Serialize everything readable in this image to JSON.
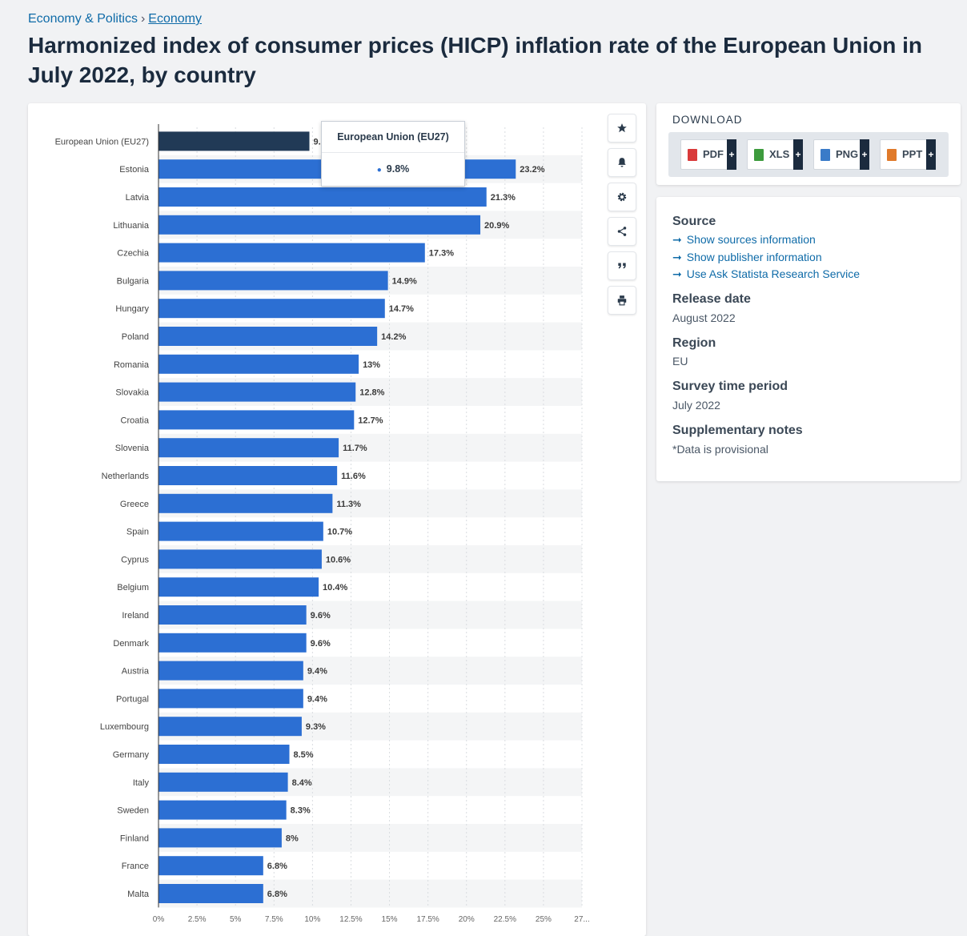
{
  "breadcrumb": {
    "parent": "Economy & Politics",
    "separator": "›",
    "current": "Economy"
  },
  "title": "Harmonized index of consumer prices (HICP) inflation rate of the European Union in July 2022, by country",
  "toolbar": {
    "icons": [
      "star-icon",
      "bell-icon",
      "gear-icon",
      "share-icon",
      "quote-icon",
      "print-icon"
    ]
  },
  "tooltip": {
    "title": "European Union (EU27)",
    "value": "9.8%"
  },
  "download": {
    "heading": "DOWNLOAD",
    "formats": [
      {
        "label": "PDF",
        "color": "#d93a3a"
      },
      {
        "label": "XLS",
        "color": "#3d9b3d"
      },
      {
        "label": "PNG",
        "color": "#3a7bc8"
      },
      {
        "label": "PPT",
        "color": "#e07a2a"
      }
    ],
    "plus": "+"
  },
  "info": {
    "source_heading": "Source",
    "arrow": "➞",
    "links": [
      "Show sources information",
      "Show publisher information",
      "Use Ask Statista Research Service"
    ],
    "release_heading": "Release date",
    "release_value": "August 2022",
    "region_heading": "Region",
    "region_value": "EU",
    "survey_heading": "Survey time period",
    "survey_value": "July 2022",
    "notes_heading": "Supplementary notes",
    "notes_value": "*Data is provisional"
  },
  "colors": {
    "bar": "#2c6fd3",
    "highlight_bar": "#213a56",
    "label": "#3a3a3a"
  },
  "chart_data": {
    "type": "bar",
    "orientation": "horizontal",
    "categories": [
      "European Union (EU27)",
      "Estonia",
      "Latvia",
      "Lithuania",
      "Czechia",
      "Bulgaria",
      "Hungary",
      "Poland",
      "Romania",
      "Slovakia",
      "Croatia",
      "Slovenia",
      "Netherlands",
      "Greece",
      "Spain",
      "Cyprus",
      "Belgium",
      "Ireland",
      "Denmark",
      "Austria",
      "Portugal",
      "Luxembourg",
      "Germany",
      "Italy",
      "Sweden",
      "Finland",
      "France",
      "Malta"
    ],
    "values": [
      9.8,
      23.2,
      21.3,
      20.9,
      17.3,
      14.9,
      14.7,
      14.2,
      13,
      12.8,
      12.7,
      11.7,
      11.6,
      11.3,
      10.7,
      10.6,
      10.4,
      9.6,
      9.6,
      9.4,
      9.4,
      9.3,
      8.5,
      8.4,
      8.3,
      8,
      6.8,
      6.8
    ],
    "value_labels": [
      "9.8%",
      "23.2%",
      "21.3%",
      "20.9%",
      "17.3%",
      "14.9%",
      "14.7%",
      "14.2%",
      "13%",
      "12.8%",
      "12.7%",
      "11.7%",
      "11.6%",
      "11.3%",
      "10.7%",
      "10.6%",
      "10.4%",
      "9.6%",
      "9.6%",
      "9.4%",
      "9.4%",
      "9.3%",
      "8.5%",
      "8.4%",
      "8.3%",
      "8%",
      "6.8%",
      "6.8%"
    ],
    "highlighted": "European Union (EU27)",
    "xlim": [
      0,
      27.5
    ],
    "xticks": [
      0,
      2.5,
      5,
      7.5,
      10,
      12.5,
      15,
      17.5,
      20,
      22.5,
      25,
      27.5
    ],
    "xtick_labels": [
      "0%",
      "2.5%",
      "5%",
      "7.5%",
      "10%",
      "12.5%",
      "15%",
      "17.5%",
      "20%",
      "22.5%",
      "25%",
      "27..."
    ],
    "grid": true
  }
}
